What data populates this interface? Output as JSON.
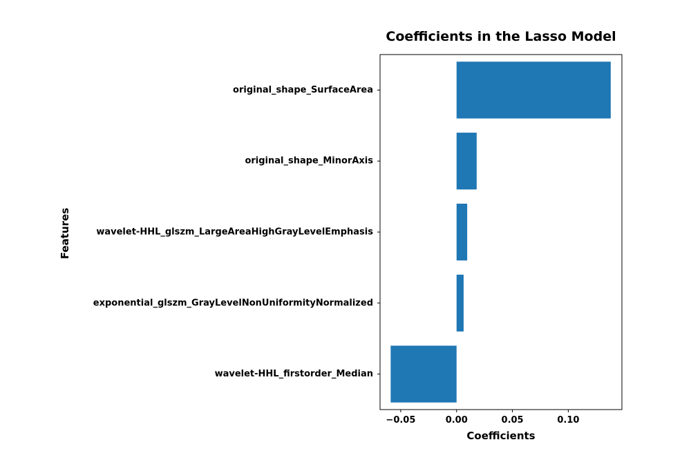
{
  "chart_data": {
    "type": "bar",
    "orientation": "horizontal",
    "title": "Coefficients in the Lasso Model",
    "xlabel": "Coefficients",
    "ylabel": "Features",
    "categories": [
      "original_shape_SurfaceArea",
      "original_shape_MinorAxis",
      "wavelet-HHL_glszm_LargeAreaHighGrayLevelEmphasis",
      "exponential_glszm_GrayLevelNonUniformityNormalized",
      "wavelet-HHL_firstorder_Median"
    ],
    "values": [
      0.138,
      0.018,
      0.0095,
      0.0063,
      -0.059
    ],
    "xlim": [
      -0.0685,
      0.148
    ],
    "xticks": [
      -0.05,
      0.0,
      0.05,
      0.1
    ],
    "xtick_labels": [
      "−0.05",
      "0.00",
      "0.05",
      "0.10"
    ],
    "bar_color": "#1f77b4",
    "grid": false,
    "legend": "none"
  }
}
